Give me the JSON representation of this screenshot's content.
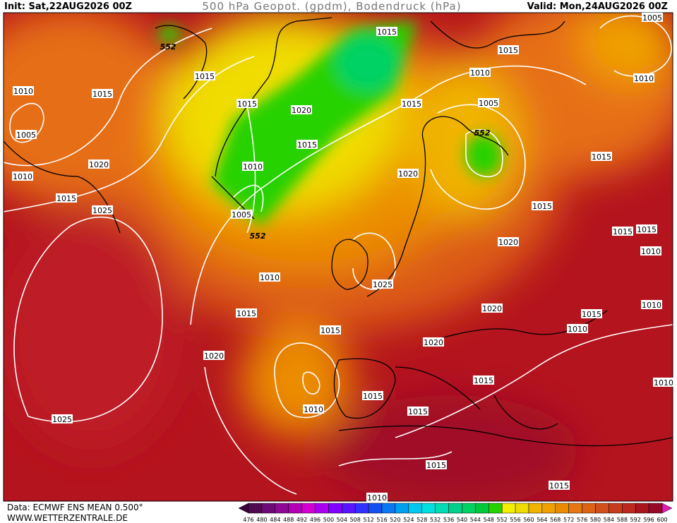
{
  "header": {
    "init": "Init: Sat,22AUG2026 00Z",
    "title": "500 hPa Geopot. (gpdm), Bodendruck (hPa)",
    "valid": "Valid: Mon,24AUG2026 00Z"
  },
  "footer": {
    "source": "Data: ECMWF ENS MEAN 0.500°",
    "site": "WWW.WETTERZENTRALE.DE"
  },
  "isobar_labels": [
    "1015",
    "1015",
    "1015",
    "1010",
    "1010",
    "1015",
    "1010",
    "1015",
    "1020",
    "1015",
    "1005",
    "1005",
    "1015",
    "1015",
    "1020",
    "1010",
    "1020",
    "1010",
    "1015",
    "1025",
    "1015",
    "1005",
    "1015",
    "1015",
    "1020",
    "1010",
    "1010",
    "1025",
    "1020",
    "1015",
    "1015",
    "1010",
    "1015",
    "1010",
    "1020",
    "1020",
    "1015",
    "1015",
    "1010",
    "1010",
    "1015",
    "1025",
    "1015",
    "1015",
    "1010",
    "1005"
  ],
  "geopot_labels": [
    "552",
    "552",
    "552"
  ],
  "colorbar": {
    "ticks": [
      476,
      480,
      484,
      488,
      492,
      496,
      500,
      504,
      508,
      512,
      516,
      520,
      524,
      528,
      532,
      536,
      540,
      544,
      548,
      552,
      556,
      560,
      564,
      568,
      572,
      576,
      580,
      584,
      588,
      592,
      596,
      600
    ],
    "colors": [
      "#500a50",
      "#6e0a78",
      "#8c0a96",
      "#b400b4",
      "#d200d2",
      "#aa00f0",
      "#8200ff",
      "#5a14ff",
      "#3232ff",
      "#1450f0",
      "#0a78f0",
      "#00a0f0",
      "#00c8f0",
      "#00e0e0",
      "#00dcb4",
      "#00d28c",
      "#00d264",
      "#00c83c",
      "#28d200",
      "#f0f000",
      "#f0dc00",
      "#f0b400",
      "#f0a000",
      "#eb8c00",
      "#e67814",
      "#dc6414",
      "#d2501e",
      "#c83c1e",
      "#be281e",
      "#aa141e",
      "#960a28"
    ]
  }
}
